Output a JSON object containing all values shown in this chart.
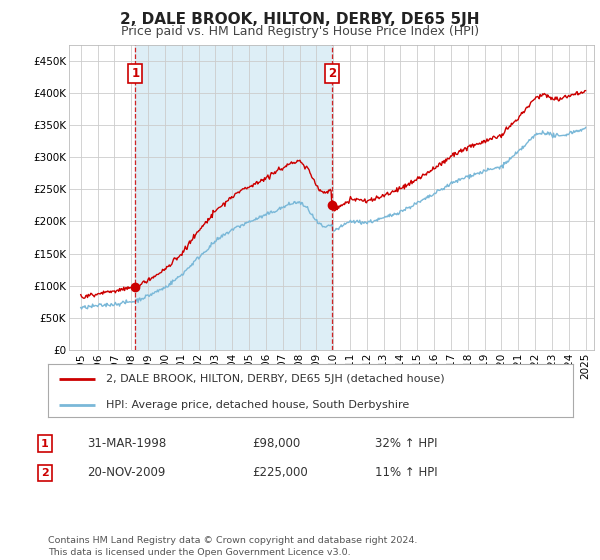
{
  "title": "2, DALE BROOK, HILTON, DERBY, DE65 5JH",
  "subtitle": "Price paid vs. HM Land Registry's House Price Index (HPI)",
  "legend_line1": "2, DALE BROOK, HILTON, DERBY, DE65 5JH (detached house)",
  "legend_line2": "HPI: Average price, detached house, South Derbyshire",
  "transaction1_date": "31-MAR-1998",
  "transaction1_price": "£98,000",
  "transaction1_hpi": "32% ↑ HPI",
  "transaction2_date": "20-NOV-2009",
  "transaction2_price": "£225,000",
  "transaction2_hpi": "11% ↑ HPI",
  "footer": "Contains HM Land Registry data © Crown copyright and database right 2024.\nThis data is licensed under the Open Government Licence v3.0.",
  "hpi_color": "#7ab8d8",
  "sale_color": "#cc0000",
  "vline_color": "#cc0000",
  "shade_color": "#ddeef6",
  "background_color": "#ffffff",
  "grid_color": "#cccccc",
  "ylim": [
    0,
    475000
  ],
  "yticks": [
    0,
    50000,
    100000,
    150000,
    200000,
    250000,
    300000,
    350000,
    400000,
    450000
  ],
  "sale1_t": 1998.25,
  "sale2_t": 2009.9167,
  "sale1_price": 98000,
  "sale2_price": 225000
}
